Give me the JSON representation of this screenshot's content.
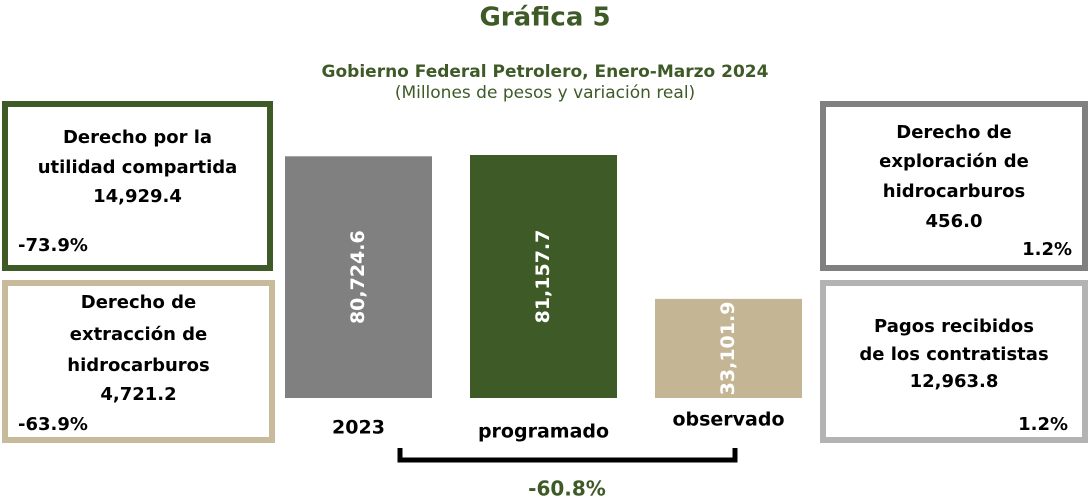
{
  "chart_data": {
    "type": "bar",
    "title": "Gráfica 5",
    "subtitle": "Gobierno Federal Petrolero, Enero-Marzo 2024",
    "unit_note": "(Millones de pesos y variación real)",
    "categories": [
      "2023",
      "programado",
      "observado"
    ],
    "values": [
      80724.6,
      81157.7,
      33101.9
    ],
    "value_labels": [
      "80,724.6",
      "81,157.7",
      "33,101.9"
    ],
    "colors": [
      "#808080",
      "#3d5a27",
      "#c4b594"
    ],
    "annotation": "-60.8%",
    "boxes": [
      {
        "lines": [
          "Derecho por la",
          "utilidad compartida"
        ],
        "value": "14,929.4",
        "change": "-73.9%",
        "color": "#3d5a27"
      },
      {
        "lines": [
          "Derecho de",
          "extracción de",
          "hidrocarburos"
        ],
        "value": "4,721.2",
        "change": "-63.9%",
        "color": "#c8bb9b"
      },
      {
        "lines": [
          "Derecho de",
          "exploración de",
          "hidrocarburos"
        ],
        "value": "456.0",
        "change": "1.2%",
        "color": "#808080"
      },
      {
        "lines": [
          "Pagos recibidos",
          "de los contratistas"
        ],
        "value": "12,963.8",
        "change": "1.2%",
        "color": "#b3b3b3"
      }
    ]
  }
}
